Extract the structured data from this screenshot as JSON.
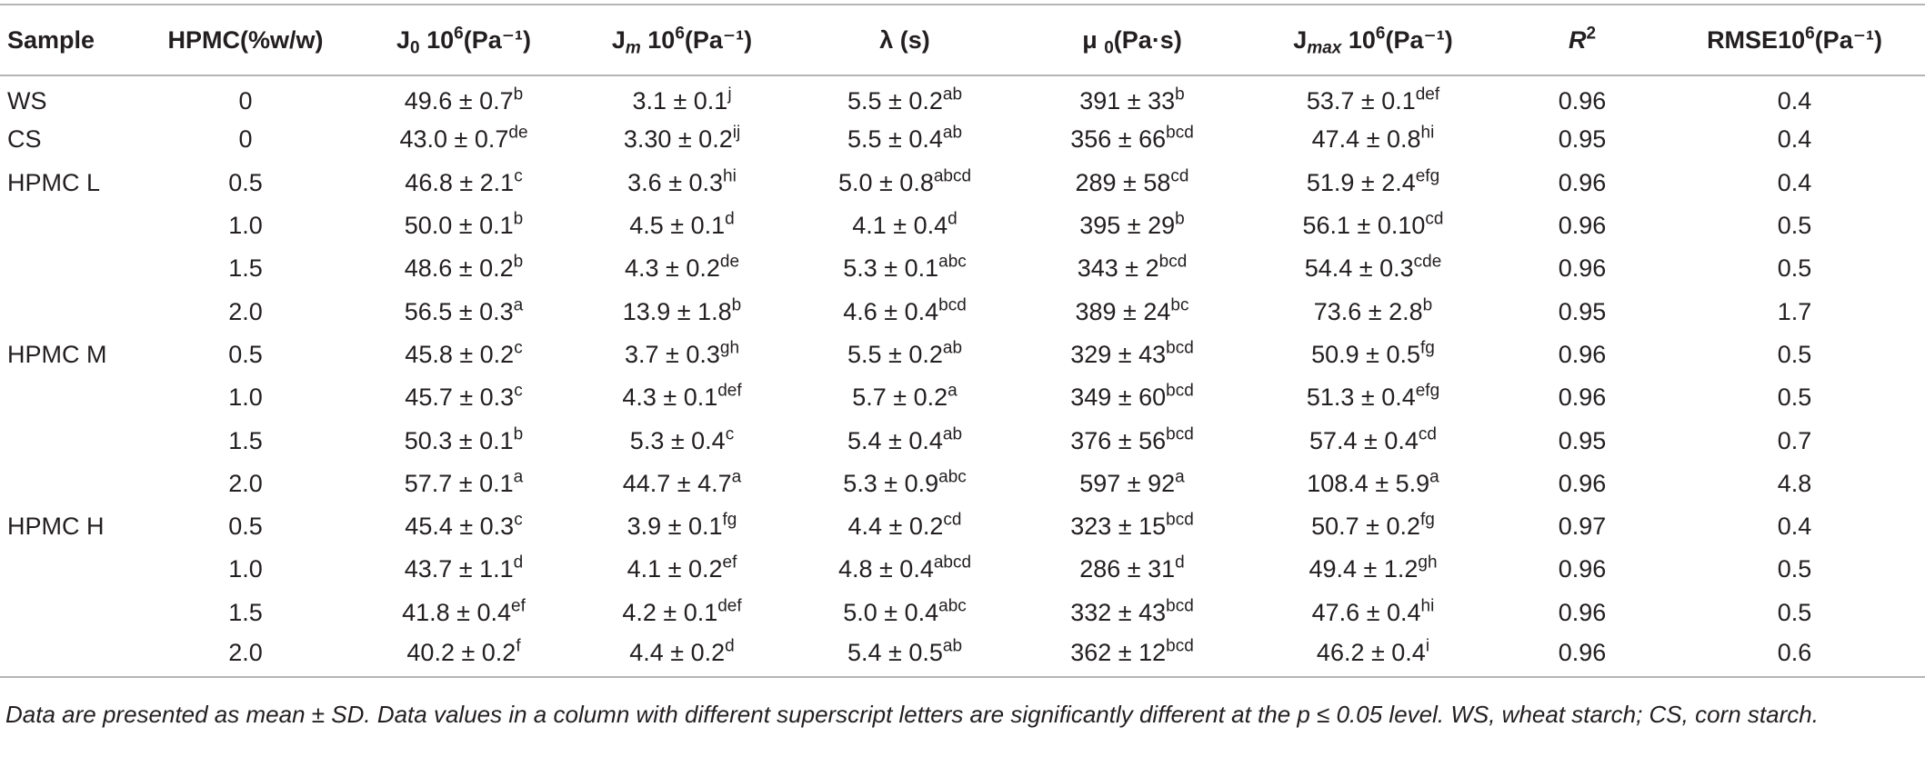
{
  "table": {
    "headers": [
      {
        "base": "Sample",
        "sub": "",
        "mid": "",
        "sup": "",
        "tail": ""
      },
      {
        "base": "HPMC(%w/w)",
        "sub": "",
        "mid": "",
        "sup": "",
        "tail": ""
      },
      {
        "base": "J",
        "sub": "0",
        "mid": " 10",
        "sup": "6",
        "tail": "(Pa⁻¹)"
      },
      {
        "base": "J",
        "sub": "m",
        "mid": " 10",
        "sup": "6",
        "tail": "(Pa⁻¹)"
      },
      {
        "base": "λ (s)",
        "sub": "",
        "mid": "",
        "sup": "",
        "tail": ""
      },
      {
        "base": "μ ",
        "sub": "0",
        "mid": "(Pa·s)",
        "sup": "",
        "tail": ""
      },
      {
        "base": "J",
        "sub": "max",
        "mid": " 10",
        "sup": "6",
        "tail": "(Pa⁻¹)"
      },
      {
        "base": "R",
        "sub": "",
        "mid": "",
        "sup": "2",
        "tail": ""
      },
      {
        "base": "RMSE10",
        "sub": "",
        "mid": "",
        "sup": "6",
        "tail": "(Pa⁻¹)"
      }
    ],
    "rows": [
      {
        "sample": "WS",
        "hpmc": "0",
        "j0": {
          "v": "49.6 ± 0.7",
          "s": "b"
        },
        "jm": {
          "v": "3.1 ± 0.1",
          "s": "j"
        },
        "lambda": {
          "v": "5.5 ± 0.2",
          "s": "ab"
        },
        "mu0": {
          "v": "391 ± 33",
          "s": "b"
        },
        "jmax": {
          "v": "53.7 ± 0.1",
          "s": "def"
        },
        "r2": "0.96",
        "rmse": "0.4"
      },
      {
        "sample": "CS",
        "hpmc": "0",
        "j0": {
          "v": "43.0 ± 0.7",
          "s": "de"
        },
        "jm": {
          "v": "3.30 ± 0.2",
          "s": "ij"
        },
        "lambda": {
          "v": "5.5 ± 0.4",
          "s": "ab"
        },
        "mu0": {
          "v": "356 ± 66",
          "s": "bcd"
        },
        "jmax": {
          "v": "47.4 ± 0.8",
          "s": "hi"
        },
        "r2": "0.95",
        "rmse": "0.4"
      },
      {
        "sample": "HPMC L",
        "hpmc": "0.5",
        "j0": {
          "v": "46.8 ± 2.1",
          "s": "c"
        },
        "jm": {
          "v": "3.6 ± 0.3",
          "s": "hi"
        },
        "lambda": {
          "v": "5.0 ± 0.8",
          "s": "abcd"
        },
        "mu0": {
          "v": "289 ± 58",
          "s": "cd"
        },
        "jmax": {
          "v": "51.9 ± 2.4",
          "s": "efg"
        },
        "r2": "0.96",
        "rmse": "0.4"
      },
      {
        "sample": "",
        "hpmc": "1.0",
        "j0": {
          "v": "50.0 ± 0.1",
          "s": "b"
        },
        "jm": {
          "v": "4.5 ± 0.1",
          "s": "d"
        },
        "lambda": {
          "v": "4.1 ± 0.4",
          "s": "d"
        },
        "mu0": {
          "v": "395 ± 29",
          "s": "b"
        },
        "jmax": {
          "v": "56.1 ± 0.10",
          "s": "cd"
        },
        "r2": "0.96",
        "rmse": "0.5"
      },
      {
        "sample": "",
        "hpmc": "1.5",
        "j0": {
          "v": "48.6 ± 0.2",
          "s": "b"
        },
        "jm": {
          "v": "4.3 ± 0.2",
          "s": "de"
        },
        "lambda": {
          "v": "5.3 ± 0.1",
          "s": "abc"
        },
        "mu0": {
          "v": "343 ± 2",
          "s": "bcd"
        },
        "jmax": {
          "v": "54.4 ± 0.3",
          "s": "cde"
        },
        "r2": "0.96",
        "rmse": "0.5"
      },
      {
        "sample": "",
        "hpmc": "2.0",
        "j0": {
          "v": "56.5 ± 0.3",
          "s": "a"
        },
        "jm": {
          "v": "13.9 ± 1.8",
          "s": "b"
        },
        "lambda": {
          "v": "4.6 ± 0.4",
          "s": "bcd"
        },
        "mu0": {
          "v": "389 ± 24",
          "s": "bc"
        },
        "jmax": {
          "v": "73.6 ± 2.8",
          "s": "b"
        },
        "r2": "0.95",
        "rmse": "1.7"
      },
      {
        "sample": "HPMC M",
        "hpmc": "0.5",
        "j0": {
          "v": "45.8 ± 0.2",
          "s": "c"
        },
        "jm": {
          "v": "3.7 ± 0.3",
          "s": "gh"
        },
        "lambda": {
          "v": "5.5 ± 0.2",
          "s": "ab"
        },
        "mu0": {
          "v": "329 ± 43",
          "s": "bcd"
        },
        "jmax": {
          "v": "50.9 ± 0.5",
          "s": "fg"
        },
        "r2": "0.96",
        "rmse": "0.5"
      },
      {
        "sample": "",
        "hpmc": "1.0",
        "j0": {
          "v": "45.7 ± 0.3",
          "s": "c"
        },
        "jm": {
          "v": "4.3 ± 0.1",
          "s": "def"
        },
        "lambda": {
          "v": "5.7 ± 0.2",
          "s": "a"
        },
        "mu0": {
          "v": "349 ± 60",
          "s": "bcd"
        },
        "jmax": {
          "v": "51.3 ± 0.4",
          "s": "efg"
        },
        "r2": "0.96",
        "rmse": "0.5"
      },
      {
        "sample": "",
        "hpmc": "1.5",
        "j0": {
          "v": "50.3 ± 0.1",
          "s": "b"
        },
        "jm": {
          "v": "5.3 ± 0.4",
          "s": "c"
        },
        "lambda": {
          "v": "5.4 ± 0.4",
          "s": "ab"
        },
        "mu0": {
          "v": "376 ± 56",
          "s": "bcd"
        },
        "jmax": {
          "v": "57.4 ± 0.4",
          "s": "cd"
        },
        "r2": "0.95",
        "rmse": "0.7"
      },
      {
        "sample": "",
        "hpmc": "2.0",
        "j0": {
          "v": "57.7 ± 0.1",
          "s": "a"
        },
        "jm": {
          "v": "44.7 ± 4.7",
          "s": "a"
        },
        "lambda": {
          "v": "5.3 ± 0.9",
          "s": "abc"
        },
        "mu0": {
          "v": "597 ± 92",
          "s": "a"
        },
        "jmax": {
          "v": "108.4 ± 5.9",
          "s": "a"
        },
        "r2": "0.96",
        "rmse": "4.8"
      },
      {
        "sample": "HPMC H",
        "hpmc": "0.5",
        "j0": {
          "v": "45.4 ± 0.3",
          "s": "c"
        },
        "jm": {
          "v": "3.9 ± 0.1",
          "s": "fg"
        },
        "lambda": {
          "v": "4.4 ± 0.2",
          "s": "cd"
        },
        "mu0": {
          "v": "323 ± 15",
          "s": "bcd"
        },
        "jmax": {
          "v": "50.7 ± 0.2",
          "s": "fg"
        },
        "r2": "0.97",
        "rmse": "0.4"
      },
      {
        "sample": "",
        "hpmc": "1.0",
        "j0": {
          "v": "43.7 ± 1.1",
          "s": "d"
        },
        "jm": {
          "v": "4.1 ± 0.2",
          "s": "ef"
        },
        "lambda": {
          "v": "4.8 ± 0.4",
          "s": "abcd"
        },
        "mu0": {
          "v": "286 ± 31",
          "s": "d"
        },
        "jmax": {
          "v": "49.4 ± 1.2",
          "s": "gh"
        },
        "r2": "0.96",
        "rmse": "0.5"
      },
      {
        "sample": "",
        "hpmc": "1.5",
        "j0": {
          "v": "41.8 ± 0.4",
          "s": "ef"
        },
        "jm": {
          "v": "4.2 ± 0.1",
          "s": "def"
        },
        "lambda": {
          "v": "5.0 ± 0.4",
          "s": "abc"
        },
        "mu0": {
          "v": "332 ± 43",
          "s": "bcd"
        },
        "jmax": {
          "v": "47.6 ± 0.4",
          "s": "hi"
        },
        "r2": "0.96",
        "rmse": "0.5"
      },
      {
        "sample": "",
        "hpmc": "2.0",
        "j0": {
          "v": "40.2 ± 0.2",
          "s": "f"
        },
        "jm": {
          "v": "4.4 ± 0.2",
          "s": "d"
        },
        "lambda": {
          "v": "5.4 ± 0.5",
          "s": "ab"
        },
        "mu0": {
          "v": "362 ± 12",
          "s": "bcd"
        },
        "jmax": {
          "v": "46.2 ± 0.4",
          "s": "i"
        },
        "r2": "0.96",
        "rmse": "0.6"
      }
    ],
    "footnote": "Data are presented as mean ± SD. Data values in a column with different superscript letters are significantly different at the p ≤ 0.05 level. WS, wheat starch; CS, corn starch."
  }
}
